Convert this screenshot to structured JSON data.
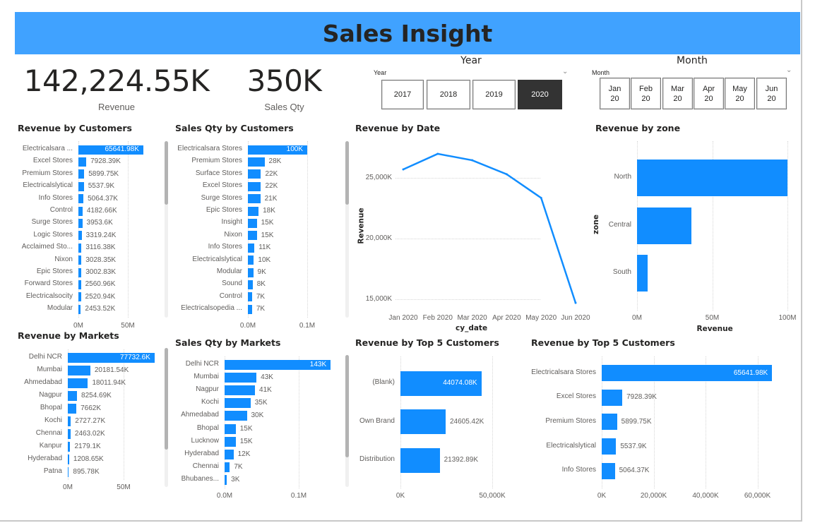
{
  "header": {
    "title": "Sales Insight",
    "color": "#40a2ff"
  },
  "kpis": [
    {
      "value": "142,224.55K",
      "label": "Revenue"
    },
    {
      "value": "350K",
      "label": "Sales Qty"
    }
  ],
  "year_slicer": {
    "title": "Year",
    "label": "Year",
    "options": [
      "2017",
      "2018",
      "2019",
      "2020"
    ],
    "selected": "2020"
  },
  "month_slicer": {
    "title": "Month",
    "label": "Month",
    "options": [
      {
        "month": "Jan",
        "year": "20"
      },
      {
        "month": "Feb",
        "year": "20"
      },
      {
        "month": "Mar",
        "year": "20"
      },
      {
        "month": "Apr",
        "year": "20"
      },
      {
        "month": "May",
        "year": "20"
      },
      {
        "month": "Jun",
        "year": "20"
      }
    ]
  },
  "colors": {
    "bar": "#118dff",
    "selected_button": "#333333"
  },
  "chart_data": [
    {
      "id": "rev_customers",
      "type": "bar",
      "orientation": "horizontal",
      "title": "Revenue by Customers",
      "categories": [
        "Electricalsara ...",
        "Excel Stores",
        "Premium Stores",
        "Electricalslytical",
        "Info Stores",
        "Control",
        "Surge Stores",
        "Logic Stores",
        "Acclaimed Sto...",
        "Nixon",
        "Epic Stores",
        "Forward Stores",
        "Electricalsocity",
        "Modular"
      ],
      "values": [
        65641.98,
        7928.39,
        5899.75,
        5537.9,
        5064.37,
        4182.66,
        3953.6,
        3319.24,
        3116.38,
        3028.35,
        3002.83,
        2560.96,
        2520.94,
        2453.52
      ],
      "value_labels": [
        "65641.98K",
        "7928.39K",
        "5899.75K",
        "5537.9K",
        "5064.37K",
        "4182.66K",
        "3953.6K",
        "3319.24K",
        "3116.38K",
        "3028.35K",
        "3002.83K",
        "2560.96K",
        "2520.94K",
        "2453.52K"
      ],
      "unit": "K",
      "ticks": [
        {
          "value": 0,
          "label": "0M"
        },
        {
          "value": 50000,
          "label": "50M"
        }
      ],
      "grid": true,
      "scrollable": true
    },
    {
      "id": "qty_customers",
      "type": "bar",
      "orientation": "horizontal",
      "title": "Sales Qty by Customers",
      "categories": [
        "Electricalsara Stores",
        "Premium Stores",
        "Surface Stores",
        "Excel Stores",
        "Surge Stores",
        "Epic Stores",
        "Insight",
        "Nixon",
        "Info Stores",
        "Electricalslytical",
        "Modular",
        "Sound",
        "Control",
        "Electricalsopedia ..."
      ],
      "values": [
        100,
        28,
        22,
        22,
        21,
        18,
        15,
        15,
        11,
        10,
        9,
        8,
        7,
        7
      ],
      "value_labels": [
        "100K",
        "28K",
        "22K",
        "22K",
        "21K",
        "18K",
        "15K",
        "15K",
        "11K",
        "10K",
        "9K",
        "8K",
        "7K",
        "7K"
      ],
      "unit": "K",
      "ticks": [
        {
          "value": 0,
          "label": "0.0M"
        },
        {
          "value": 100,
          "label": "0.1M"
        }
      ],
      "grid": true,
      "scrollable": true
    },
    {
      "id": "rev_markets",
      "type": "bar",
      "orientation": "horizontal",
      "title": "Revenue by Markets",
      "categories": [
        "Delhi NCR",
        "Mumbai",
        "Ahmedabad",
        "Nagpur",
        "Bhopal",
        "Kochi",
        "Chennai",
        "Kanpur",
        "Hyderabad",
        "Patna"
      ],
      "values": [
        77732.6,
        20181.54,
        18011.94,
        8254.69,
        7662,
        2727.27,
        2463.02,
        2179.1,
        1208.65,
        895.78
      ],
      "value_labels": [
        "77732.6K",
        "20181.54K",
        "18011.94K",
        "8254.69K",
        "7662K",
        "2727.27K",
        "2463.02K",
        "2179.1K",
        "1208.65K",
        "895.78K"
      ],
      "unit": "K",
      "ticks": [
        {
          "value": 0,
          "label": "0M"
        },
        {
          "value": 50000,
          "label": "50M"
        }
      ],
      "grid": true,
      "scrollable": true
    },
    {
      "id": "qty_markets",
      "type": "bar",
      "orientation": "horizontal",
      "title": "Sales Qty by Markets",
      "categories": [
        "Delhi NCR",
        "Mumbai",
        "Nagpur",
        "Kochi",
        "Ahmedabad",
        "Bhopal",
        "Lucknow",
        "Hyderabad",
        "Chennai",
        "Bhubanes..."
      ],
      "values": [
        143,
        43,
        41,
        35,
        30,
        15,
        15,
        12,
        7,
        3
      ],
      "value_labels": [
        "143K",
        "43K",
        "41K",
        "35K",
        "30K",
        "15K",
        "15K",
        "12K",
        "7K",
        "3K"
      ],
      "unit": "K",
      "ticks": [
        {
          "value": 0,
          "label": "0.0M"
        },
        {
          "value": 100,
          "label": "0.1M"
        }
      ],
      "grid": true,
      "scrollable": true
    },
    {
      "id": "rev_date",
      "type": "line",
      "title": "Revenue by Date",
      "x": [
        "Jan 2020",
        "Feb 2020",
        "Mar 2020",
        "Apr 2020",
        "May 2020",
        "Jun 2020"
      ],
      "values": [
        25700,
        26980,
        26450,
        25300,
        23350,
        14700
      ],
      "unit": "K",
      "xlabel": "cy_date",
      "ylabel": "Revenue",
      "yticks": [
        {
          "value": 25000,
          "label": "25,000K"
        },
        {
          "value": 20000,
          "label": "20,000K"
        },
        {
          "value": 15000,
          "label": "15,000K"
        }
      ],
      "grid": true
    },
    {
      "id": "rev_zone",
      "type": "bar",
      "orientation": "horizontal",
      "title": "Revenue by zone",
      "categories": [
        "North",
        "Central",
        "South"
      ],
      "values": [
        100,
        36,
        7
      ],
      "unit": "M",
      "xlabel": "Revenue",
      "ylabel": "zone",
      "ticks": [
        {
          "value": 0,
          "label": "0M"
        },
        {
          "value": 50,
          "label": "50M"
        },
        {
          "value": 100,
          "label": "100M"
        }
      ],
      "grid": true
    },
    {
      "id": "rev_top5_segment",
      "type": "bar",
      "orientation": "horizontal",
      "title": "Revenue by Top 5 Customers",
      "categories": [
        "(Blank)",
        "Own Brand",
        "Distribution"
      ],
      "values": [
        44074.08,
        24605.42,
        21392.89
      ],
      "value_labels": [
        "44074.08K",
        "24605.42K",
        "21392.89K"
      ],
      "unit": "K",
      "ticks": [
        {
          "value": 0,
          "label": "0K"
        },
        {
          "value": 50000,
          "label": "50,000K"
        }
      ],
      "grid": true
    },
    {
      "id": "rev_top5_customers",
      "type": "bar",
      "orientation": "horizontal",
      "title": "Revenue by Top 5 Customers",
      "categories": [
        "Electricalsara Stores",
        "Excel Stores",
        "Premium Stores",
        "Electricalslytical",
        "Info Stores"
      ],
      "values": [
        65641.98,
        7928.39,
        5899.75,
        5537.9,
        5064.37
      ],
      "value_labels": [
        "65641.98K",
        "7928.39K",
        "5899.75K",
        "5537.9K",
        "5064.37K"
      ],
      "unit": "K",
      "ticks": [
        {
          "value": 0,
          "label": "0K"
        },
        {
          "value": 20000,
          "label": "20,000K"
        },
        {
          "value": 40000,
          "label": "40,000K"
        },
        {
          "value": 60000,
          "label": "60,000K"
        }
      ],
      "grid": true
    }
  ]
}
